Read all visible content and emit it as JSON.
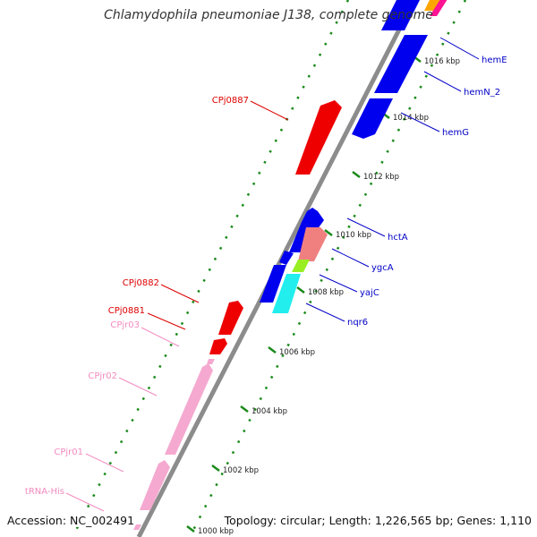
{
  "map": {
    "title": "Chlamydophila pneumoniae J138, complete genome",
    "accession": "Accession: NC_002491",
    "topology": "Topology: circular; Length: 1,226,565 bp; Genes: 1,110"
  },
  "colors": {
    "forward_cds": "#0000ee",
    "reverse_cds": "#ee0000",
    "rna": "#f5a9d0",
    "backbone": "#8c8c8c",
    "ticks": "#1a8a1a"
  },
  "scale": [
    {
      "label": "1000 kbp"
    },
    {
      "label": "1002 kbp"
    },
    {
      "label": "1004 kbp"
    },
    {
      "label": "1006 kbp"
    },
    {
      "label": "1008 kbp"
    },
    {
      "label": "1010 kbp"
    },
    {
      "label": "1012 kbp"
    },
    {
      "label": "1014 kbp"
    },
    {
      "label": "1016 kbp"
    }
  ],
  "features": [
    {
      "label": "hemE",
      "strand": "forward",
      "color": "#0000ee"
    },
    {
      "label": "hemN_2",
      "strand": "forward",
      "color": "#0000ee"
    },
    {
      "label": "hemG",
      "strand": "forward",
      "color": "#0000ee"
    },
    {
      "label": "hctA",
      "strand": "forward",
      "color": "#0000ee"
    },
    {
      "label": "ygcA",
      "strand": "forward",
      "color": "#f08080"
    },
    {
      "label": "yajC",
      "strand": "forward",
      "color": "#99ee22"
    },
    {
      "label": "nqr6",
      "strand": "forward",
      "color": "#22eeee"
    },
    {
      "label": "CPj0887",
      "strand": "reverse",
      "color": "#ee0000"
    },
    {
      "label": "CPj0882",
      "strand": "reverse",
      "color": "#ee0000"
    },
    {
      "label": "CPj0881",
      "strand": "reverse",
      "color": "#ee0000"
    },
    {
      "label": "CPjr03",
      "strand": "reverse",
      "color": "#f5a9d0"
    },
    {
      "label": "CPjr02",
      "strand": "reverse",
      "color": "#f5a9d0"
    },
    {
      "label": "CPjr01",
      "strand": "reverse",
      "color": "#f5a9d0"
    },
    {
      "label": "tRNA-His",
      "strand": "reverse",
      "color": "#f5a9d0"
    }
  ]
}
